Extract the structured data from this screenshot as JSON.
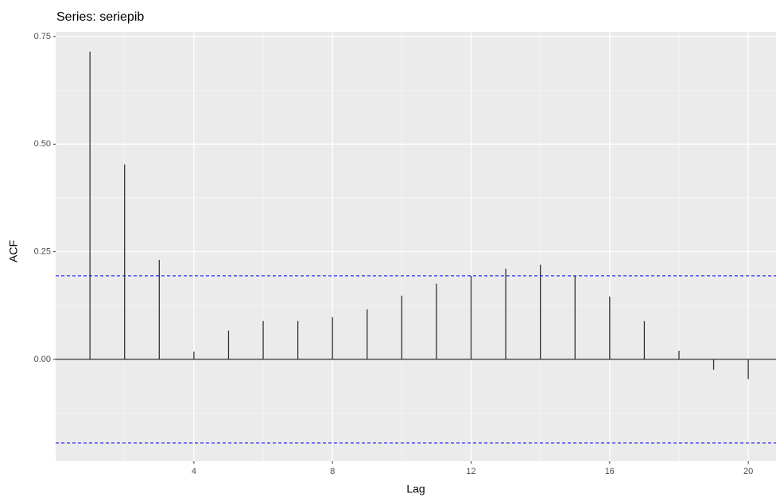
{
  "chart_data": {
    "type": "acf",
    "title": "Series: seriepib",
    "x_label": "Lag",
    "y_label": "ACF",
    "x": [
      1,
      2,
      3,
      4,
      5,
      6,
      7,
      8,
      9,
      10,
      11,
      12,
      13,
      14,
      15,
      16,
      17,
      18,
      19,
      20
    ],
    "values": [
      0.715,
      0.453,
      0.231,
      0.018,
      0.067,
      0.089,
      0.089,
      0.098,
      0.116,
      0.148,
      0.176,
      0.194,
      0.211,
      0.22,
      0.194,
      0.146,
      0.089,
      0.02,
      -0.024,
      -0.046
    ],
    "color": "#333333",
    "ci_lines": [
      0.194,
      -0.194
    ],
    "ci_color": "#0000ff",
    "baseline": 0,
    "xlim": [
      0.01,
      20.8
    ],
    "ylim": [
      -0.2366,
      0.761
    ],
    "xticks": [
      4,
      8,
      12,
      16,
      20
    ],
    "yticks": [
      {
        "value": 0.75,
        "label": "0.75"
      },
      {
        "value": 0.5,
        "label": "0.50"
      },
      {
        "value": 0.25,
        "label": "0.25"
      },
      {
        "value": 0,
        "label": "0.00"
      }
    ],
    "grid": true
  }
}
